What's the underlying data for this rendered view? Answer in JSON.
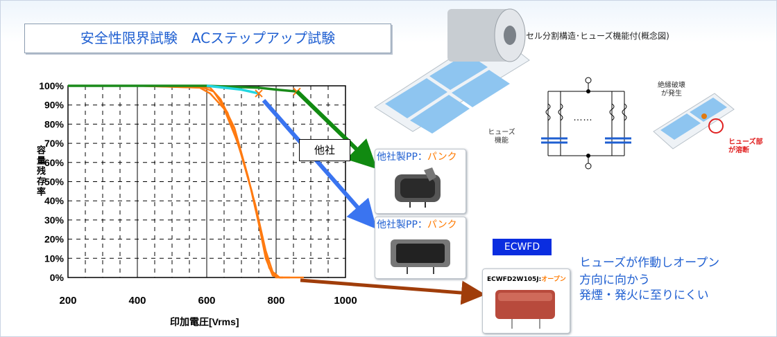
{
  "title": "安全性限界試験　ACステップアップ試験",
  "y_axis_label": "容量残存率",
  "x_axis_label": "印加電圧[Vrms]",
  "other_company_label": "他社",
  "card1": {
    "label_prefix": "他社製PP：",
    "label_suffix": "パンク"
  },
  "card2": {
    "label_prefix": "他社製PP：",
    "label_suffix": "パンク"
  },
  "ecwfd": {
    "badge": "ECWFD",
    "part_label_prefix": "ECWFD2W105J:",
    "part_label_suffix": "オープン"
  },
  "result_text": {
    "line1": "ヒューズが作動しオープン",
    "line2": "方向に向かう",
    "line3": "発煙・発火に至りにくい"
  },
  "diagram": {
    "title": "セル分割構造･ヒューズ機能付(概念図)",
    "fuse_label_1": "ヒューズ",
    "fuse_label_2": "機能",
    "breakdown_label_1": "絶縁破壊",
    "breakdown_label_2": "が発生",
    "melt_label_1": "ヒューズ部",
    "melt_label_2": "が溶断"
  },
  "colors": {
    "ecwfd": "#ff7a10",
    "competitor_a": "#1a8a1a",
    "competitor_b": "#22d6e0",
    "arrow_green": "#118a11",
    "arrow_blue": "#3a74f0",
    "arrow_brown": "#a03d0a"
  },
  "chart_data": {
    "type": "line",
    "xlim": [
      200,
      1000
    ],
    "ylim": [
      0,
      100
    ],
    "x_ticks": [
      "200",
      "400",
      "600",
      "800",
      "1000"
    ],
    "y_ticks": [
      "0%",
      "10%",
      "20%",
      "30%",
      "40%",
      "50%",
      "60%",
      "70%",
      "80%",
      "90%",
      "100%"
    ],
    "grid": true,
    "series": [
      {
        "key": "ecwfd_1",
        "color": "#ff7a10",
        "x": [
          200,
          400,
          580,
          610,
          640,
          680,
          720,
          750,
          770,
          790,
          810,
          880
        ],
        "y": [
          100,
          100,
          100,
          99,
          93,
          78,
          52,
          28,
          10,
          1,
          0,
          0
        ]
      },
      {
        "key": "ecwfd_2",
        "color": "#ff7a10",
        "x": [
          200,
          400,
          580,
          610,
          650,
          690,
          730,
          760,
          780,
          800,
          820
        ],
        "y": [
          100,
          100,
          99,
          96,
          88,
          70,
          45,
          20,
          5,
          0,
          0
        ]
      },
      {
        "key": "ecwfd_3",
        "color": "#ff7a10",
        "x": [
          200,
          400,
          590,
          620,
          660,
          700,
          740,
          770,
          790,
          810,
          840
        ],
        "y": [
          100,
          100,
          99,
          97,
          86,
          64,
          38,
          14,
          3,
          0,
          0
        ]
      },
      {
        "key": "competitor_a",
        "color": "#1a8a1a",
        "x": [
          200,
          400,
          600,
          750,
          800,
          860
        ],
        "y": [
          100,
          100,
          100,
          99,
          98,
          97
        ]
      },
      {
        "key": "competitor_b",
        "color": "#22d6e0",
        "x": [
          600,
          700,
          750
        ],
        "y": [
          100,
          98,
          96
        ]
      }
    ],
    "failure_points": [
      {
        "x": 750,
        "y": 96
      },
      {
        "x": 860,
        "y": 97
      }
    ]
  }
}
